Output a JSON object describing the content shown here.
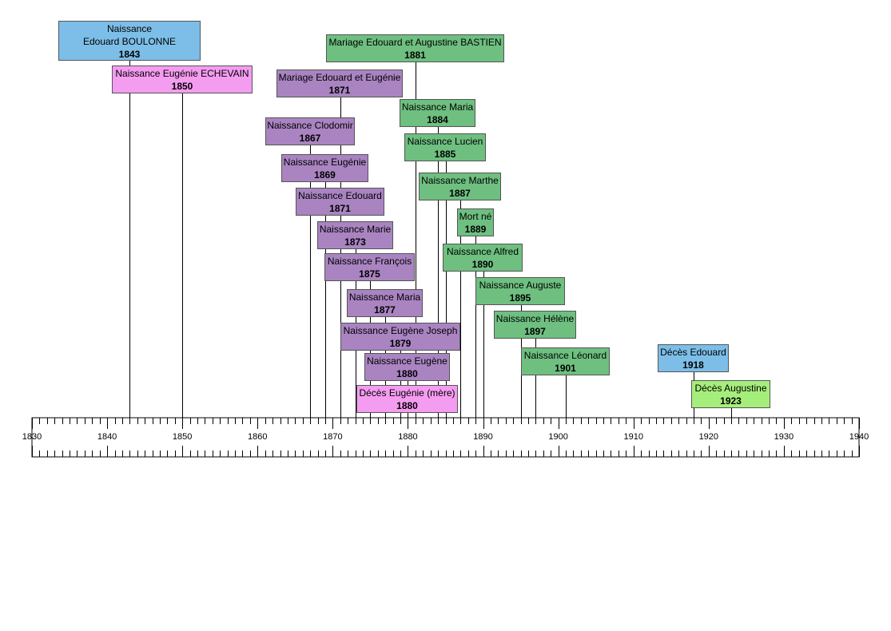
{
  "palette": {
    "edouard": "#7dbee8",
    "eugenie": "#f49cf0",
    "mariage_eugenie": "#a984c1",
    "mariage_augustine": "#6ebf80",
    "augustine": "#a6ee7c"
  },
  "chart_data": {
    "type": "timeline",
    "axis": {
      "start": 1830,
      "end": 1940,
      "major_step": 10,
      "minor_step": 1
    },
    "axis_labels": [
      "1830",
      "1840",
      "1850",
      "1860",
      "1870",
      "1880",
      "1890",
      "1900",
      "1910",
      "1920",
      "1930",
      "1940"
    ],
    "events": [
      {
        "id": "naissance-edouard",
        "lines": [
          "Naissance",
          "Edouard BOULONNE"
        ],
        "year": 1843,
        "year_label": "1843",
        "color": "edouard"
      },
      {
        "id": "naissance-eugenie-echevain",
        "lines": [
          "Naissance Eugénie ECHEVAIN"
        ],
        "year": 1850,
        "year_label": "1850",
        "color": "eugenie"
      },
      {
        "id": "mariage-augustine",
        "lines": [
          "Mariage Edouard et Augustine BASTIEN"
        ],
        "year": 1881,
        "year_label": "1881",
        "color": "mariage_augustine"
      },
      {
        "id": "mariage-eugenie",
        "lines": [
          "Mariage Edouard et Eugénie"
        ],
        "year": 1871,
        "year_label": "1871",
        "color": "mariage_eugenie"
      },
      {
        "id": "naissance-clodomir",
        "lines": [
          "Naissance Clodomir"
        ],
        "year": 1867,
        "year_label": "1867",
        "color": "mariage_eugenie"
      },
      {
        "id": "naissance-eugenie-1869",
        "lines": [
          "Naissance Eugénie"
        ],
        "year": 1869,
        "year_label": "1869",
        "color": "mariage_eugenie"
      },
      {
        "id": "naissance-edouard-1871",
        "lines": [
          "Naissance Edouard"
        ],
        "year": 1871,
        "year_label": "1871",
        "color": "mariage_eugenie"
      },
      {
        "id": "naissance-marie",
        "lines": [
          "Naissance Marie"
        ],
        "year": 1873,
        "year_label": "1873",
        "color": "mariage_eugenie"
      },
      {
        "id": "naissance-francois",
        "lines": [
          "Naissance François"
        ],
        "year": 1875,
        "year_label": "1875",
        "color": "mariage_eugenie"
      },
      {
        "id": "naissance-maria-1877",
        "lines": [
          "Naissance Maria"
        ],
        "year": 1877,
        "year_label": "1877",
        "color": "mariage_eugenie"
      },
      {
        "id": "naissance-eugene-joseph",
        "lines": [
          "Naissance Eugène Joseph"
        ],
        "year": 1879,
        "year_label": "1879",
        "color": "mariage_eugenie"
      },
      {
        "id": "naissance-eugene",
        "lines": [
          "Naissance Eugène"
        ],
        "year": 1880,
        "year_label": "1880",
        "color": "mariage_eugenie"
      },
      {
        "id": "deces-eugenie",
        "lines": [
          "Décès Eugénie (mère)"
        ],
        "year": 1880,
        "year_label": "1880",
        "color": "eugenie"
      },
      {
        "id": "naissance-maria-1884",
        "lines": [
          "Naissance Maria"
        ],
        "year": 1884,
        "year_label": "1884",
        "color": "mariage_augustine"
      },
      {
        "id": "naissance-lucien",
        "lines": [
          "Naissance Lucien"
        ],
        "year": 1885,
        "year_label": "1885",
        "color": "mariage_augustine"
      },
      {
        "id": "naissance-marthe",
        "lines": [
          "Naissance Marthe"
        ],
        "year": 1887,
        "year_label": "1887",
        "color": "mariage_augustine"
      },
      {
        "id": "mort-ne",
        "lines": [
          "Mort né"
        ],
        "year": 1889,
        "year_label": "1889",
        "color": "mariage_augustine"
      },
      {
        "id": "naissance-alfred",
        "lines": [
          "Naissance Alfred"
        ],
        "year": 1890,
        "year_label": "1890",
        "color": "mariage_augustine"
      },
      {
        "id": "naissance-auguste",
        "lines": [
          "Naissance Auguste"
        ],
        "year": 1895,
        "year_label": "1895",
        "color": "mariage_augustine"
      },
      {
        "id": "naissance-helene",
        "lines": [
          "Naissance Hélène"
        ],
        "year": 1897,
        "year_label": "1897",
        "color": "mariage_augustine"
      },
      {
        "id": "naissance-leonard",
        "lines": [
          "Naissance Léonard"
        ],
        "year": 1901,
        "year_label": "1901",
        "color": "mariage_augustine"
      },
      {
        "id": "deces-edouard",
        "lines": [
          "Décès Edouard"
        ],
        "year": 1918,
        "year_label": "1918",
        "color": "edouard"
      },
      {
        "id": "deces-augustine",
        "lines": [
          "Décès Augustine"
        ],
        "year": 1923,
        "year_label": "1923",
        "color": "augustine"
      }
    ]
  }
}
